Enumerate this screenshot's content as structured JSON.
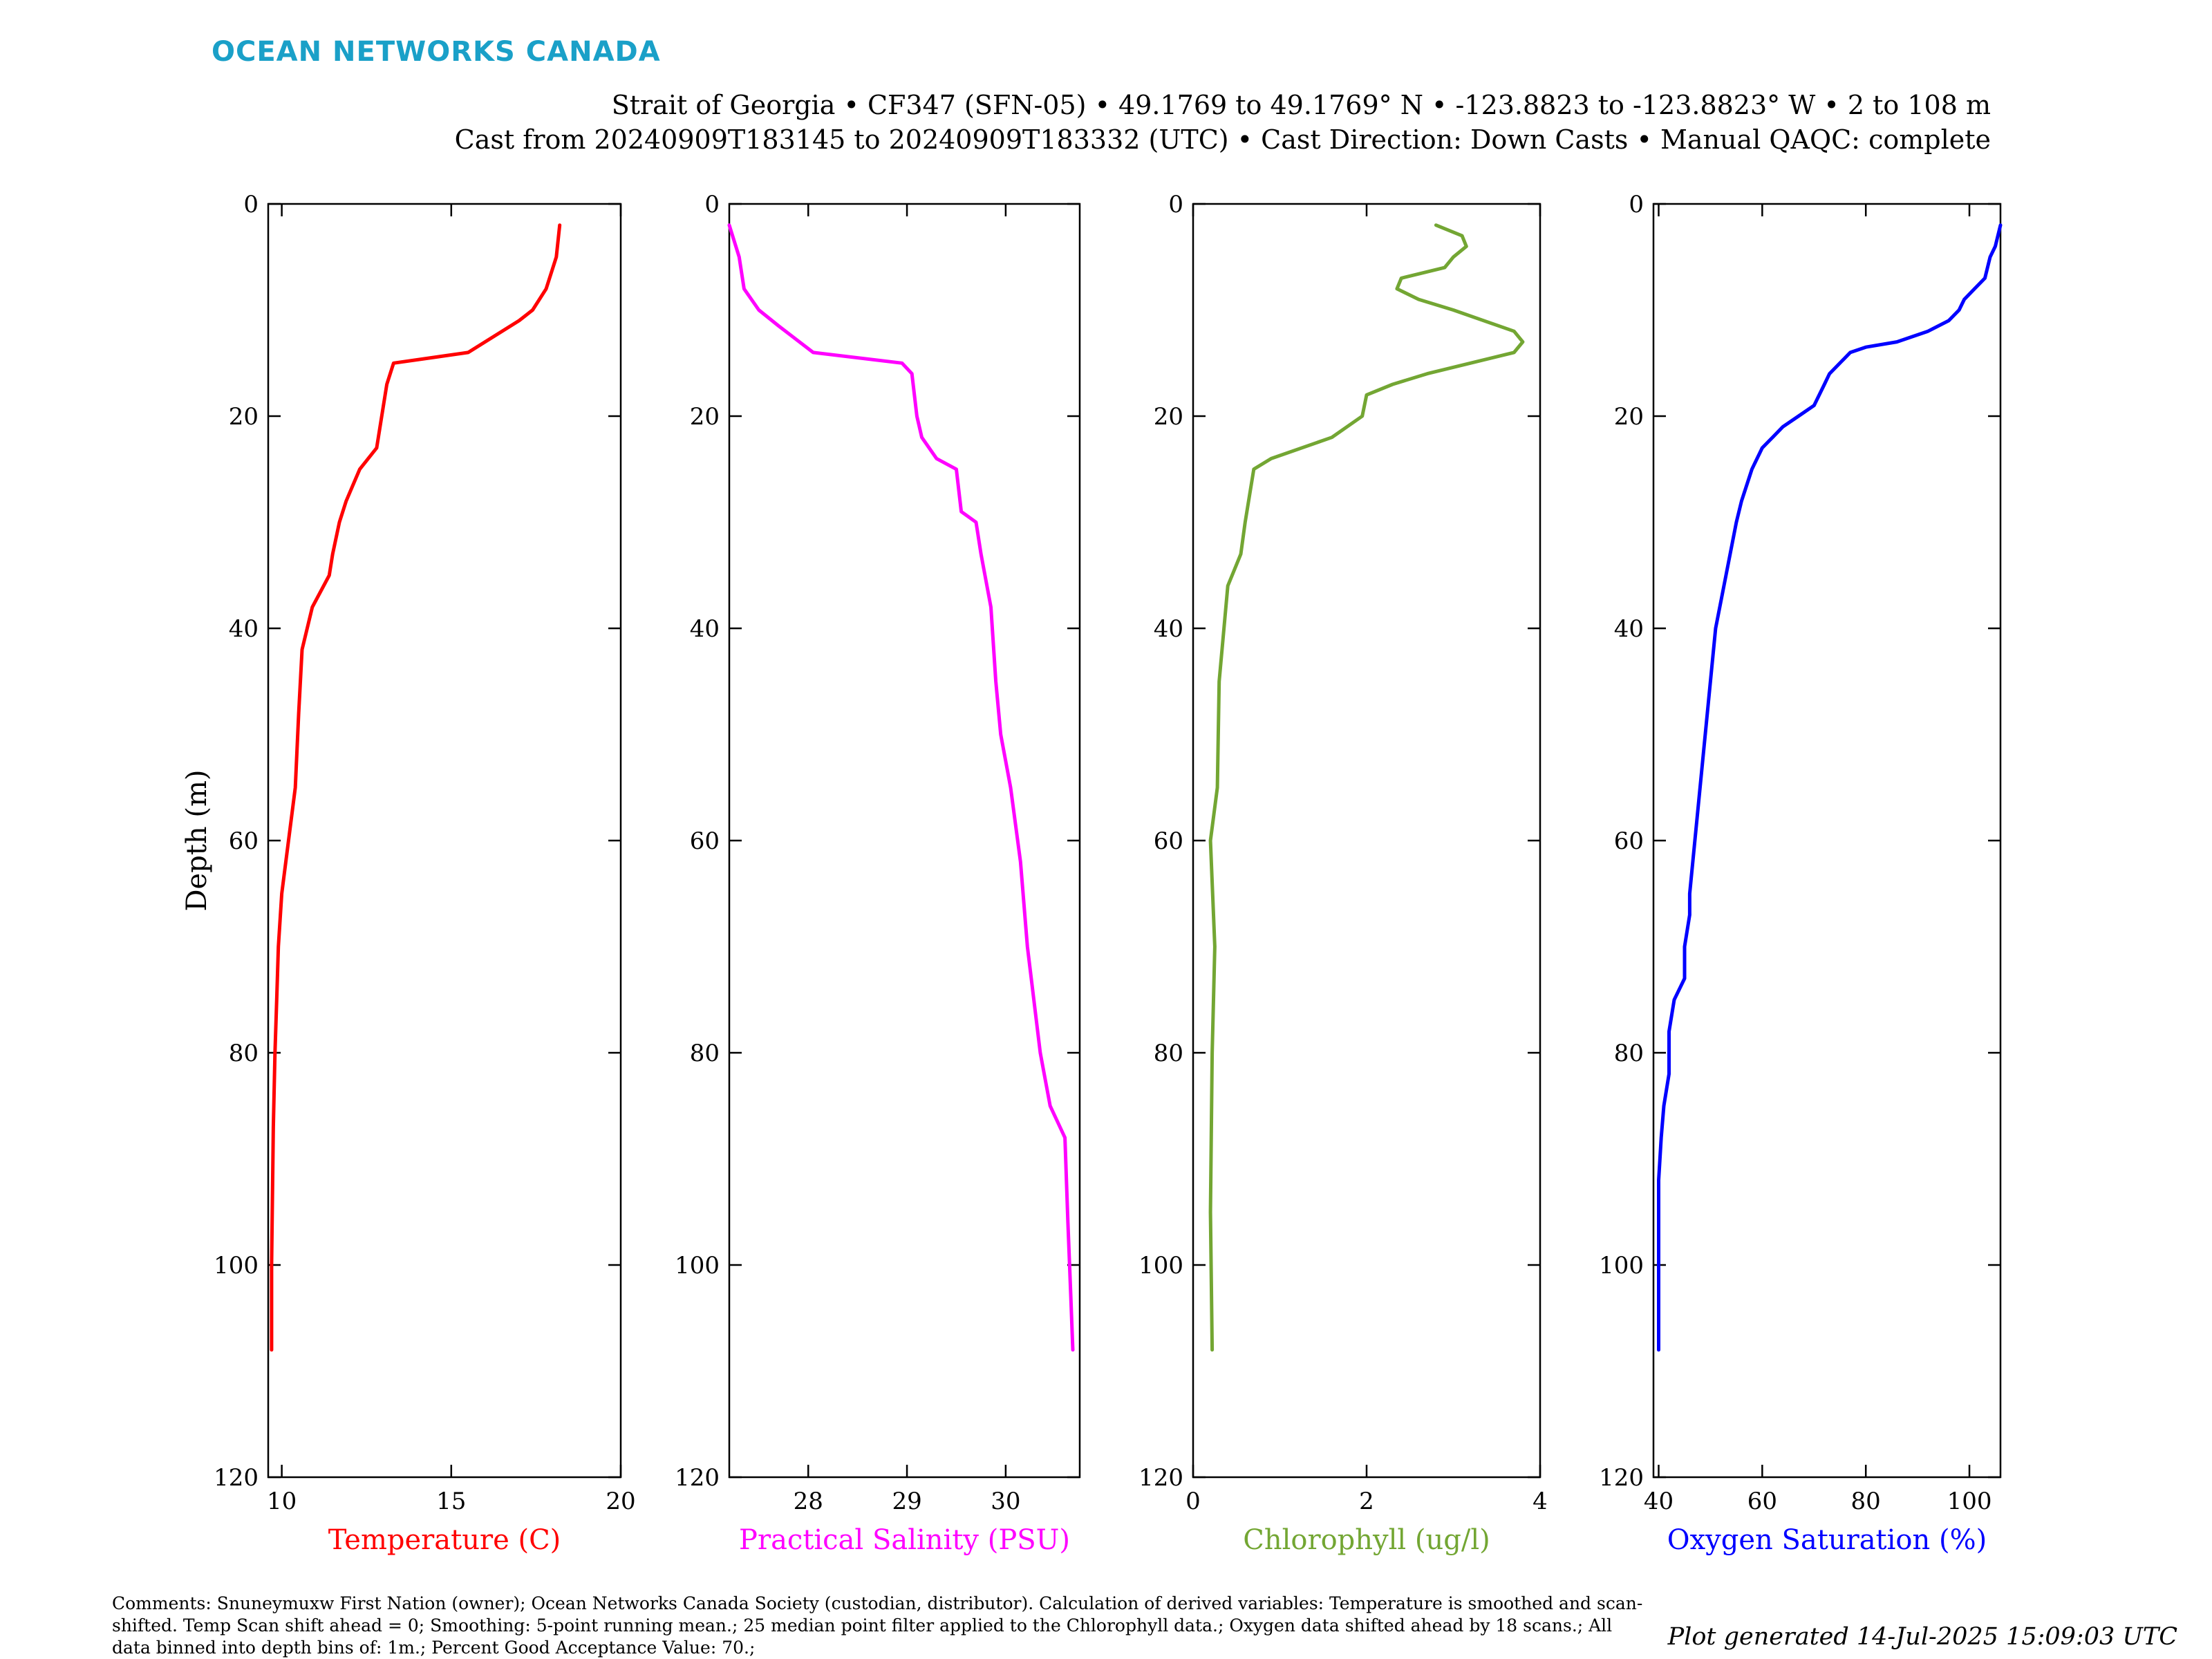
{
  "brand": "OCEAN NETWORKS CANADA",
  "header": {
    "line1": "Strait of Georgia • CF347 (SFN-05) • 49.1769 to 49.1769° N • -123.8823 to -123.8823° W • 2 to 108 m",
    "line2": "Cast from 20240909T183145 to 20240909T183332 (UTC) • Cast Direction: Down Casts • Manual QAQC: complete"
  },
  "chart_data": [
    {
      "type": "line",
      "xlabel": "Temperature (C)",
      "ylabel": "Depth (m)",
      "color": "#ff0000",
      "xlim": [
        9.6,
        20
      ],
      "xticks": [
        10,
        15,
        20
      ],
      "ylim": [
        0,
        120
      ],
      "yticks": [
        0,
        20,
        40,
        60,
        80,
        100,
        120
      ],
      "y_reversed": true,
      "x": [
        18.2,
        18.1,
        17.8,
        17.4,
        17.0,
        15.5,
        13.3,
        13.1,
        12.9,
        12.8,
        12.3,
        11.9,
        11.7,
        11.5,
        11.4,
        10.9,
        10.6,
        10.5,
        10.4,
        10.2,
        10.0,
        9.9,
        9.85,
        9.8,
        9.75,
        9.7,
        9.7
      ],
      "y": [
        2,
        5,
        8,
        10,
        11,
        14,
        15,
        17,
        21,
        23,
        25,
        28,
        30,
        33,
        35,
        38,
        42,
        48,
        55,
        60,
        65,
        70,
        75,
        80,
        87,
        100,
        108
      ]
    },
    {
      "type": "line",
      "xlabel": "Practical Salinity (PSU)",
      "ylabel": "",
      "color": "#ff00ff",
      "xlim": [
        27.2,
        30.75
      ],
      "xticks": [
        28,
        29,
        30
      ],
      "ylim": [
        0,
        120
      ],
      "yticks": [
        0,
        20,
        40,
        60,
        80,
        100,
        120
      ],
      "y_reversed": true,
      "x": [
        27.2,
        27.3,
        27.35,
        27.5,
        27.7,
        28.05,
        28.95,
        29.05,
        29.1,
        29.15,
        29.3,
        29.5,
        29.55,
        29.7,
        29.75,
        29.85,
        29.9,
        29.95,
        30.05,
        30.15,
        30.22,
        30.35,
        30.45,
        30.6,
        30.63,
        30.66,
        30.68
      ],
      "y": [
        2,
        5,
        8,
        10,
        11.5,
        14,
        15,
        16,
        20,
        22,
        24,
        25,
        29,
        30,
        33,
        38,
        45,
        50,
        55,
        62,
        70,
        80,
        85,
        88,
        96,
        103,
        108
      ]
    },
    {
      "type": "line",
      "xlabel": "Chlorophyll (ug/l)",
      "ylabel": "",
      "color": "#73a633",
      "xlim": [
        0,
        4
      ],
      "xticks": [
        0,
        2,
        4
      ],
      "ylim": [
        0,
        120
      ],
      "yticks": [
        0,
        20,
        40,
        60,
        80,
        100,
        120
      ],
      "y_reversed": true,
      "x": [
        2.8,
        3.1,
        3.15,
        3.0,
        2.9,
        2.4,
        2.35,
        2.6,
        3.0,
        3.7,
        3.8,
        3.7,
        2.7,
        2.3,
        2.0,
        1.95,
        1.6,
        0.9,
        0.7,
        0.6,
        0.55,
        0.4,
        0.3,
        0.28,
        0.2,
        0.25,
        0.22,
        0.2,
        0.22
      ],
      "y": [
        2,
        3,
        4,
        5,
        6,
        7,
        8,
        9,
        10,
        12,
        13,
        14,
        16,
        17,
        18,
        20,
        22,
        24,
        25,
        30,
        33,
        36,
        45,
        55,
        60,
        70,
        80,
        95,
        108
      ]
    },
    {
      "type": "line",
      "xlabel": "Oxygen Saturation (%)",
      "ylabel": "",
      "color": "#0000ff",
      "xlim": [
        39,
        106
      ],
      "xticks": [
        40,
        60,
        80,
        100
      ],
      "ylim": [
        0,
        120
      ],
      "yticks": [
        0,
        20,
        40,
        60,
        80,
        100,
        120
      ],
      "y_reversed": true,
      "x": [
        106,
        105,
        104,
        103,
        101,
        99,
        98,
        96,
        92,
        86,
        80,
        77,
        75,
        73,
        72,
        70,
        67,
        64,
        62,
        60,
        58,
        56,
        55,
        53,
        51,
        50,
        49,
        48,
        47,
        46,
        46,
        45,
        45,
        43,
        42,
        42,
        41,
        40.5,
        40,
        40
      ],
      "y": [
        2,
        4,
        5,
        7,
        8,
        9,
        10,
        11,
        12,
        13,
        13.5,
        14,
        15,
        16,
        17,
        19,
        20,
        21,
        22,
        23,
        25,
        28,
        30,
        35,
        40,
        45,
        50,
        55,
        60,
        65,
        67,
        70,
        73,
        75,
        78,
        82,
        85,
        88,
        92,
        108
      ]
    }
  ],
  "comments": "Comments: Snuneymuxw First Nation (owner); Ocean Networks Canada Society (custodian, distributor). Calculation of derived variables: Temperature is smoothed and scan-shifted. Temp Scan shift ahead = 0; Smoothing: 5-point running mean.; 25 median point filter applied to the Chlorophyll data.; Oxygen data shifted ahead by 18 scans.; All data binned into depth bins of: 1m.; Percent Good Acceptance Value: 70.;",
  "generated": "Plot generated 14-Jul-2025 15:09:03 UTC"
}
